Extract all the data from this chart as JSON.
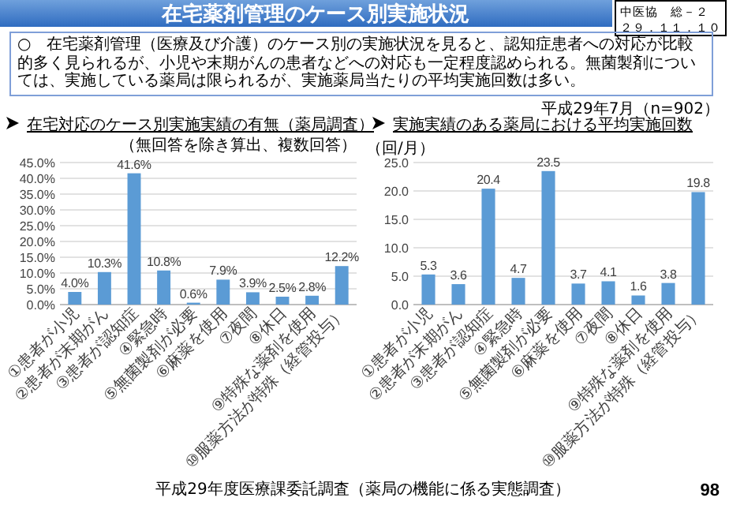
{
  "chart_data": [
    {
      "type": "bar",
      "title": "在宅対応のケース別実施実績の有無（薬局調査）",
      "subtitle": "（無回答を除き算出、複数回答）",
      "annotations": [
        "在宅薬剤管理のケース別実施状況",
        "中医協　総－２",
        "２９．１１．１０",
        "○　在宅薬剤管理（医療及び介護）のケース別の実施状況を見ると、認知症患者への対応が比較的多く見られるが、小児や末期がんの患者などへの対応も一定程度認められる。無菌製剤については、実施している薬局は限られるが、実施薬局当たりの平均実施回数は多い。",
        "平成29年7月（n=902）",
        "平成29年度医療課委託調査（薬局の機能に係る実態調査）",
        "98"
      ],
      "categories": [
        "①患者が小児",
        "②患者が末期がん",
        "③患者が認知症",
        "④緊急時",
        "⑤無菌製剤が必要",
        "⑥麻薬を使用",
        "⑦夜間",
        "⑧休日",
        "⑨特殊な薬剤を使用",
        "⑩服薬方法が特殊（経管投与）"
      ],
      "values": [
        4.0,
        10.3,
        41.6,
        10.8,
        0.6,
        7.9,
        3.9,
        2.5,
        2.8,
        12.2
      ],
      "value_labels": [
        "4.0%",
        "10.3%",
        "41.6%",
        "10.8%",
        "0.6%",
        "7.9%",
        "3.9%",
        "2.5%",
        "2.8%",
        "12.2%"
      ],
      "color": "#5b9bd5",
      "ylim": [
        0,
        45
      ],
      "yticks": [
        {
          "value": 0,
          "label": "0.0%"
        },
        {
          "value": 5,
          "label": "5.0%"
        },
        {
          "value": 10,
          "label": "10.0%"
        },
        {
          "value": 15,
          "label": "15.0%"
        },
        {
          "value": 20,
          "label": "20.0%"
        },
        {
          "value": 25,
          "label": "25.0%"
        },
        {
          "value": 30,
          "label": "30.0%"
        },
        {
          "value": 35,
          "label": "35.0%"
        },
        {
          "value": 40,
          "label": "40.0%"
        },
        {
          "value": 45,
          "label": "45.0%"
        }
      ],
      "grid": "y"
    },
    {
      "type": "bar",
      "title": "実施実績のある薬局における平均実施回数",
      "ylabel": "（回/月）",
      "categories": [
        "①患者が小児",
        "②患者が末期がん",
        "③患者が認知症",
        "④緊急時",
        "⑤無菌製剤が必要",
        "⑥麻薬を使用",
        "⑦夜間",
        "⑧休日",
        "⑨特殊な薬剤を使用",
        "⑩服薬方法が特殊（経管投与）"
      ],
      "values": [
        5.3,
        3.6,
        20.4,
        4.7,
        23.5,
        3.7,
        4.1,
        1.6,
        3.8,
        19.8
      ],
      "value_labels": [
        "5.3",
        "3.6",
        "20.4",
        "4.7",
        "23.5",
        "3.7",
        "4.1",
        "1.6",
        "3.8",
        "19.8"
      ],
      "color": "#5b9bd5",
      "ylim": [
        0,
        25
      ],
      "yticks": [
        {
          "value": 0,
          "label": "0.0"
        },
        {
          "value": 5,
          "label": "5.0"
        },
        {
          "value": 10,
          "label": "10.0"
        },
        {
          "value": 15,
          "label": "15.0"
        },
        {
          "value": 20,
          "label": "20.0"
        },
        {
          "value": 25,
          "label": "25.0"
        }
      ],
      "grid": "y"
    }
  ]
}
